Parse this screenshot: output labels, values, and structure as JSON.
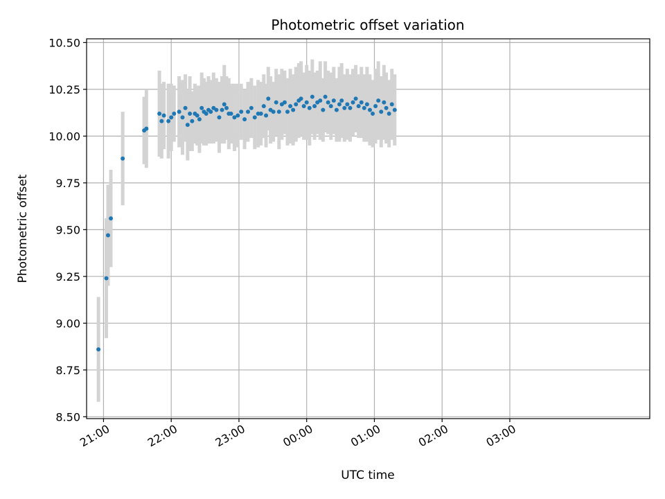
{
  "chart_data": {
    "type": "scatter",
    "title": "Photometric offset variation",
    "xlabel": "UTC time",
    "ylabel": "Photometric offset",
    "xlim_minutes": [
      1245,
      1744
    ],
    "ylim": [
      8.49,
      10.52
    ],
    "grid": true,
    "point_color": "#1f77b4",
    "errorbar_color": "#d3d3d3",
    "xticks": [
      {
        "label": "21:00",
        "minutes": 1260
      },
      {
        "label": "22:00",
        "minutes": 1320
      },
      {
        "label": "23:00",
        "minutes": 1380
      },
      {
        "label": "00:00",
        "minutes": 1440
      },
      {
        "label": "01:00",
        "minutes": 1500
      },
      {
        "label": "02:00",
        "minutes": 1560
      },
      {
        "label": "03:00",
        "minutes": 1620
      }
    ],
    "yticks": [
      8.5,
      8.75,
      9.0,
      9.25,
      9.5,
      9.75,
      10.0,
      10.25,
      10.5
    ],
    "ytick_labels": [
      "8.50",
      "8.75",
      "9.00",
      "9.25",
      "9.50",
      "9.75",
      "10.00",
      "10.25",
      "10.50"
    ],
    "points": [
      [
        1255.5,
        8.86,
        0.28
      ],
      [
        1262.5,
        9.24,
        0.32
      ],
      [
        1264.0,
        9.47,
        0.27
      ],
      [
        1266.5,
        9.56,
        0.26
      ],
      [
        1277.0,
        9.88,
        0.25
      ],
      [
        1296.0,
        10.03,
        0.18
      ],
      [
        1298.0,
        10.04,
        0.21
      ],
      [
        1309.5,
        10.12,
        0.23
      ],
      [
        1311.5,
        10.08,
        0.2
      ],
      [
        1313.5,
        10.11,
        0.18
      ],
      [
        1317.5,
        10.08,
        0.2
      ],
      [
        1320.0,
        10.1,
        0.18
      ],
      [
        1322.5,
        10.12,
        0.15
      ],
      [
        1327.0,
        10.13,
        0.19
      ],
      [
        1330.0,
        10.1,
        0.2
      ],
      [
        1332.5,
        10.15,
        0.18
      ],
      [
        1334.5,
        10.06,
        0.19
      ],
      [
        1336.5,
        10.12,
        0.2
      ],
      [
        1338.5,
        10.08,
        0.16
      ],
      [
        1341.0,
        10.12,
        0.16
      ],
      [
        1343.0,
        10.11,
        0.16
      ],
      [
        1345.0,
        10.09,
        0.18
      ],
      [
        1347.0,
        10.15,
        0.19
      ],
      [
        1349.0,
        10.13,
        0.18
      ],
      [
        1351.0,
        10.12,
        0.17
      ],
      [
        1353.0,
        10.14,
        0.18
      ],
      [
        1355.0,
        10.13,
        0.17
      ],
      [
        1357.5,
        10.15,
        0.19
      ],
      [
        1360.0,
        10.14,
        0.17
      ],
      [
        1362.5,
        10.1,
        0.19
      ],
      [
        1365.0,
        10.14,
        0.18
      ],
      [
        1367.0,
        10.17,
        0.21
      ],
      [
        1369.0,
        10.15,
        0.17
      ],
      [
        1371.0,
        10.12,
        0.19
      ],
      [
        1373.0,
        10.12,
        0.16
      ],
      [
        1376.0,
        10.1,
        0.18
      ],
      [
        1379.0,
        10.11,
        0.17
      ],
      [
        1382.0,
        10.13,
        0.15
      ],
      [
        1385.0,
        10.09,
        0.16
      ],
      [
        1388.0,
        10.13,
        0.16
      ],
      [
        1391.0,
        10.15,
        0.16
      ],
      [
        1394.0,
        10.1,
        0.17
      ],
      [
        1397.0,
        10.12,
        0.18
      ],
      [
        1399.5,
        10.12,
        0.17
      ],
      [
        1402.0,
        10.16,
        0.17
      ],
      [
        1404.0,
        10.11,
        0.17
      ],
      [
        1406.0,
        10.2,
        0.17
      ],
      [
        1408.0,
        10.14,
        0.18
      ],
      [
        1410.5,
        10.13,
        0.16
      ],
      [
        1413.0,
        10.18,
        0.18
      ],
      [
        1415.5,
        10.13,
        0.2
      ],
      [
        1418.0,
        10.17,
        0.19
      ],
      [
        1420.5,
        10.18,
        0.17
      ],
      [
        1423.0,
        10.13,
        0.18
      ],
      [
        1425.5,
        10.16,
        0.2
      ],
      [
        1428.0,
        10.14,
        0.19
      ],
      [
        1430.5,
        10.17,
        0.2
      ],
      [
        1433.0,
        10.19,
        0.2
      ],
      [
        1435.0,
        10.2,
        0.2
      ],
      [
        1437.5,
        10.16,
        0.18
      ],
      [
        1440.0,
        10.18,
        0.2
      ],
      [
        1442.5,
        10.15,
        0.2
      ],
      [
        1445.0,
        10.21,
        0.2
      ],
      [
        1447.0,
        10.16,
        0.18
      ],
      [
        1449.5,
        10.18,
        0.17
      ],
      [
        1452.0,
        10.19,
        0.21
      ],
      [
        1454.5,
        10.14,
        0.17
      ],
      [
        1456.5,
        10.21,
        0.19
      ],
      [
        1459.0,
        10.18,
        0.17
      ],
      [
        1461.5,
        10.16,
        0.18
      ],
      [
        1464.0,
        10.19,
        0.18
      ],
      [
        1466.5,
        10.14,
        0.17
      ],
      [
        1469.0,
        10.17,
        0.2
      ],
      [
        1471.0,
        10.19,
        0.2
      ],
      [
        1473.5,
        10.15,
        0.18
      ],
      [
        1476.0,
        10.17,
        0.19
      ],
      [
        1478.5,
        10.15,
        0.18
      ],
      [
        1481.0,
        10.18,
        0.18
      ],
      [
        1483.5,
        10.2,
        0.18
      ],
      [
        1486.0,
        10.16,
        0.17
      ],
      [
        1488.5,
        10.18,
        0.19
      ],
      [
        1491.0,
        10.15,
        0.18
      ],
      [
        1493.5,
        10.17,
        0.2
      ],
      [
        1496.0,
        10.14,
        0.19
      ],
      [
        1498.5,
        10.12,
        0.18
      ],
      [
        1501.0,
        10.16,
        0.2
      ],
      [
        1503.5,
        10.19,
        0.21
      ],
      [
        1506.0,
        10.13,
        0.19
      ],
      [
        1508.5,
        10.18,
        0.2
      ],
      [
        1510.5,
        10.15,
        0.19
      ],
      [
        1513.0,
        10.12,
        0.18
      ],
      [
        1515.5,
        10.17,
        0.19
      ],
      [
        1518.0,
        10.14,
        0.19
      ]
    ]
  }
}
